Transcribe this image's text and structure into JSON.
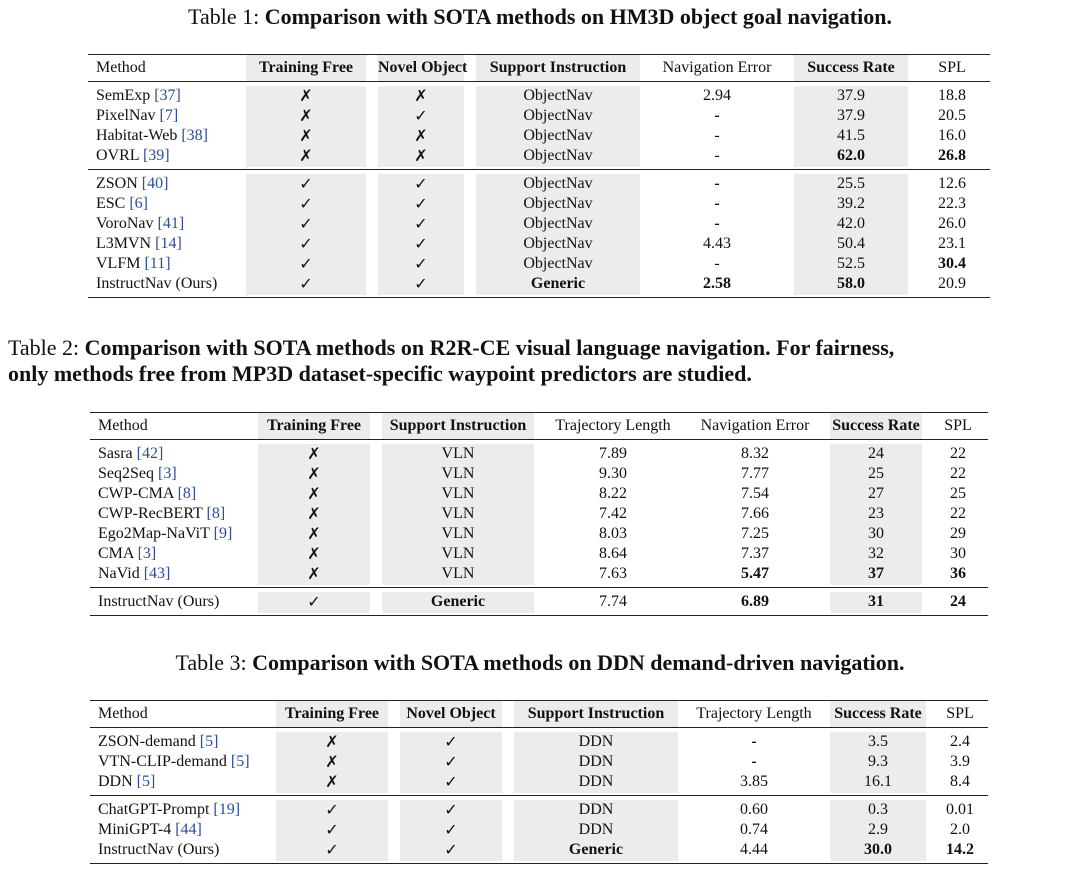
{
  "tables": [
    {
      "caption_prefix": "Table 1: ",
      "caption_bold": "Comparison with SOTA methods on HM3D object goal navigation.",
      "headers": [
        "Method",
        "Training Free",
        "Novel Object",
        "Support Instruction",
        "Navigation Error",
        "Success Rate",
        "SPL"
      ],
      "groups": [
        [
          {
            "name": "SemExp",
            "ref": "[37]",
            "cells": [
              "✗",
              "✗",
              "ObjectNav",
              "2.94",
              "37.9",
              "18.8"
            ]
          },
          {
            "name": "PixelNav",
            "ref": "[7]",
            "cells": [
              "✗",
              "✓",
              "ObjectNav",
              "-",
              "37.9",
              "20.5"
            ]
          },
          {
            "name": "Habitat-Web",
            "ref": "[38]",
            "cells": [
              "✗",
              "✗",
              "ObjectNav",
              "-",
              "41.5",
              "16.0"
            ]
          },
          {
            "name": "OVRL",
            "ref": "[39]",
            "cells": [
              "✗",
              "✗",
              "ObjectNav",
              "-",
              "62.0",
              "26.8"
            ]
          }
        ],
        [
          {
            "name": "ZSON",
            "ref": "[40]",
            "cells": [
              "✓",
              "✓",
              "ObjectNav",
              "-",
              "25.5",
              "12.6"
            ]
          },
          {
            "name": "ESC",
            "ref": "[6]",
            "cells": [
              "✓",
              "✓",
              "ObjectNav",
              "-",
              "39.2",
              "22.3"
            ]
          },
          {
            "name": "VoroNav",
            "ref": "[41]",
            "cells": [
              "✓",
              "✓",
              "ObjectNav",
              "-",
              "42.0",
              "26.0"
            ]
          },
          {
            "name": "L3MVN",
            "ref": "[14]",
            "cells": [
              "✓",
              "✓",
              "ObjectNav",
              "4.43",
              "50.4",
              "23.1"
            ]
          },
          {
            "name": "VLFM",
            "ref": "[11]",
            "cells": [
              "✓",
              "✓",
              "ObjectNav",
              "-",
              "52.5",
              "30.4"
            ]
          },
          {
            "name": "InstructNav (Ours)",
            "ref": "",
            "cells": [
              "✓",
              "✓",
              "Generic",
              "2.58",
              "58.0",
              "20.9"
            ]
          }
        ]
      ]
    },
    {
      "caption_prefix": "Table 2: ",
      "caption_bold": "Comparison with SOTA methods on R2R-CE visual language navigation. For fairness,",
      "caption_bold_line2": "only methods free from MP3D dataset-specific waypoint predictors are studied.",
      "headers": [
        "Method",
        "Training Free",
        "Support Instruction",
        "Trajectory Length",
        "Navigation Error",
        "Success Rate",
        "SPL"
      ],
      "groups": [
        [
          {
            "name": "Sasra",
            "ref": "[42]",
            "cells": [
              "✗",
              "VLN",
              "7.89",
              "8.32",
              "24",
              "22"
            ]
          },
          {
            "name": "Seq2Seq",
            "ref": "[3]",
            "cells": [
              "✗",
              "VLN",
              "9.30",
              "7.77",
              "25",
              "22"
            ]
          },
          {
            "name": "CWP-CMA",
            "ref": "[8]",
            "cells": [
              "✗",
              "VLN",
              "8.22",
              "7.54",
              "27",
              "25"
            ]
          },
          {
            "name": "CWP-RecBERT",
            "ref": "[8]",
            "cells": [
              "✗",
              "VLN",
              "7.42",
              "7.66",
              "23",
              "22"
            ]
          },
          {
            "name": "Ego2Map-NaViT",
            "ref": "[9]",
            "cells": [
              "✗",
              "VLN",
              "8.03",
              "7.25",
              "30",
              "29"
            ]
          },
          {
            "name": "CMA",
            "ref": "[3]",
            "cells": [
              "✗",
              "VLN",
              "8.64",
              "7.37",
              "32",
              "30"
            ]
          },
          {
            "name": "NaVid",
            "ref": "[43]",
            "cells": [
              "✗",
              "VLN",
              "7.63",
              "5.47",
              "37",
              "36"
            ]
          }
        ],
        [
          {
            "name": "InstructNav (Ours)",
            "ref": "",
            "cells": [
              "✓",
              "Generic",
              "7.74",
              "6.89",
              "31",
              "24"
            ]
          }
        ]
      ]
    },
    {
      "caption_prefix": "Table 3: ",
      "caption_bold": "Comparison with SOTA methods on DDN demand-driven navigation.",
      "headers": [
        "Method",
        "Training Free",
        "Novel Object",
        "Support Instruction",
        "Trajectory Length",
        "Success Rate",
        "SPL"
      ],
      "groups": [
        [
          {
            "name": "ZSON-demand",
            "ref": "[5]",
            "cells": [
              "✗",
              "✓",
              "DDN",
              "-",
              "3.5",
              "2.4"
            ]
          },
          {
            "name": "VTN-CLIP-demand",
            "ref": "[5]",
            "cells": [
              "✗",
              "✓",
              "DDN",
              "-",
              "9.3",
              "3.9"
            ]
          },
          {
            "name": "DDN",
            "ref": "[5]",
            "cells": [
              "✗",
              "✓",
              "DDN",
              "3.85",
              "16.1",
              "8.4"
            ]
          }
        ],
        [
          {
            "name": "ChatGPT-Prompt",
            "ref": "[19]",
            "cells": [
              "✓",
              "✓",
              "DDN",
              "0.60",
              "0.3",
              "0.01"
            ]
          },
          {
            "name": "MiniGPT-4",
            "ref": "[44]",
            "cells": [
              "✓",
              "✓",
              "DDN",
              "0.74",
              "2.9",
              "2.0"
            ]
          },
          {
            "name": "InstructNav (Ours)",
            "ref": "",
            "cells": [
              "✓",
              "✓",
              "Generic",
              "4.44",
              "30.0",
              "14.2"
            ]
          }
        ]
      ]
    }
  ],
  "bold_cells": [
    [
      [
        0,
        3,
        4
      ],
      [
        0,
        3,
        5
      ],
      [
        1,
        5,
        2
      ],
      [
        1,
        5,
        3
      ],
      [
        1,
        5,
        4
      ],
      [
        1,
        4,
        5
      ]
    ],
    [
      [
        0,
        6,
        3
      ],
      [
        0,
        6,
        4
      ],
      [
        0,
        6,
        5
      ],
      [
        1,
        0,
        1
      ],
      [
        1,
        0,
        3
      ],
      [
        1,
        0,
        4
      ],
      [
        1,
        0,
        5
      ]
    ],
    [
      [
        1,
        2,
        2
      ],
      [
        1,
        2,
        4
      ],
      [
        1,
        2,
        5
      ]
    ]
  ],
  "bold_dashes": [
    [
      [
        0,
        1,
        3
      ],
      [
        1,
        0,
        3
      ],
      [
        1,
        1,
        3
      ],
      [
        1,
        2,
        3
      ]
    ],
    [],
    [
      [
        0,
        0,
        3
      ],
      [
        0,
        1,
        3
      ]
    ]
  ]
}
